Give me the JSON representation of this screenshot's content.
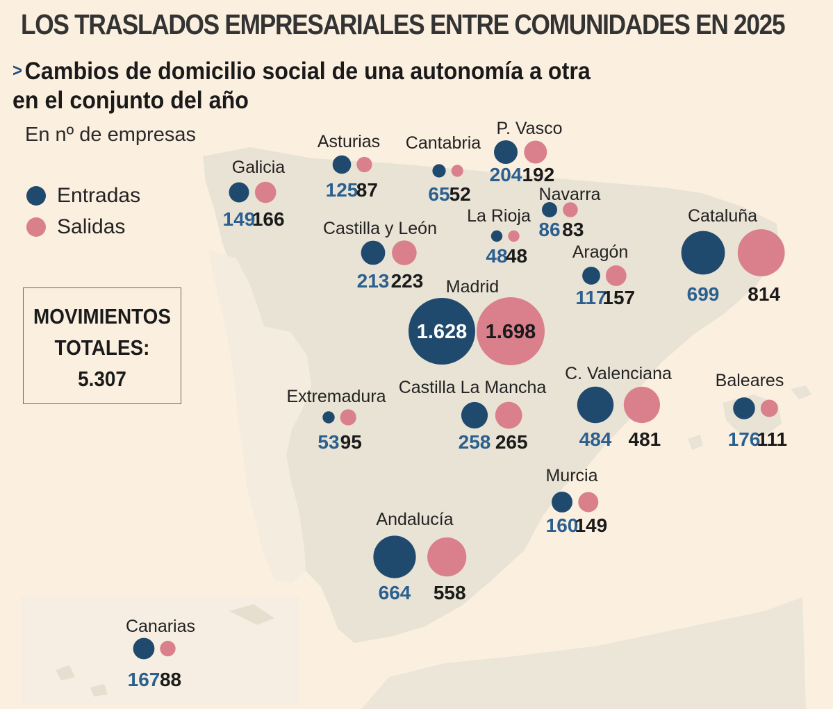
{
  "title": "LOS TRASLADOS EMPRESARIALES ENTRE COMUNIDADES EN 2025",
  "subtitle_line1": "Cambios de domicilio social de una autonomía a otra",
  "subtitle_line2": "en el conjunto del año",
  "subtitle_marker": ">",
  "unit": "En nº de empresas",
  "legend": {
    "entradas": "Entradas",
    "salidas": "Salidas"
  },
  "colors": {
    "entradas": "#1f4a6e",
    "salidas": "#d9808c",
    "land": "#e9e3d5",
    "background": "#fbefe0",
    "entradas_text": "#2a5f8f"
  },
  "totals": {
    "line1": "MOVIMIENTOS",
    "line2": "TOTALES:",
    "value": "5.307"
  },
  "chart_data": {
    "type": "proportional-symbol-map",
    "unit": "En nº de empresas",
    "series": [
      {
        "name": "Entradas",
        "color": "#1f4a6e"
      },
      {
        "name": "Salidas",
        "color": "#d9808c"
      }
    ],
    "regions": [
      {
        "name": "Galicia",
        "entradas": 149,
        "salidas": 166,
        "entradas_label": "149",
        "salidas_label": "166"
      },
      {
        "name": "Asturias",
        "entradas": 125,
        "salidas": 87,
        "entradas_label": "125",
        "salidas_label": "87"
      },
      {
        "name": "Cantabria",
        "entradas": 65,
        "salidas": 52,
        "entradas_label": "65",
        "salidas_label": "52"
      },
      {
        "name": "P. Vasco",
        "entradas": 204,
        "salidas": 192,
        "entradas_label": "204",
        "salidas_label": "192"
      },
      {
        "name": "Navarra",
        "entradas": 86,
        "salidas": 83,
        "entradas_label": "86",
        "salidas_label": "83"
      },
      {
        "name": "La Rioja",
        "entradas": 48,
        "salidas": 48,
        "entradas_label": "48",
        "salidas_label": "48"
      },
      {
        "name": "Castilla y León",
        "entradas": 213,
        "salidas": 223,
        "entradas_label": "213",
        "salidas_label": "223"
      },
      {
        "name": "Cataluña",
        "entradas": 699,
        "salidas": 814,
        "entradas_label": "699",
        "salidas_label": "814"
      },
      {
        "name": "Aragón",
        "entradas": 117,
        "salidas": 157,
        "entradas_label": "117",
        "salidas_label": "157"
      },
      {
        "name": "Madrid",
        "entradas": 1628,
        "salidas": 1698,
        "entradas_label": "1.628",
        "salidas_label": "1.698"
      },
      {
        "name": "Extremadura",
        "entradas": 53,
        "salidas": 95,
        "entradas_label": "53",
        "salidas_label": "95"
      },
      {
        "name": "Castilla La Mancha",
        "entradas": 258,
        "salidas": 265,
        "entradas_label": "258",
        "salidas_label": "265"
      },
      {
        "name": "C. Valenciana",
        "entradas": 484,
        "salidas": 481,
        "entradas_label": "484",
        "salidas_label": "481"
      },
      {
        "name": "Baleares",
        "entradas": 176,
        "salidas": 111,
        "entradas_label": "176",
        "salidas_label": "111"
      },
      {
        "name": "Murcia",
        "entradas": 160,
        "salidas": 149,
        "entradas_label": "160",
        "salidas_label": "149"
      },
      {
        "name": "Andalucía",
        "entradas": 664,
        "salidas": 558,
        "entradas_label": "664",
        "salidas_label": "558"
      },
      {
        "name": "Canarias",
        "entradas": 167,
        "salidas": 88,
        "entradas_label": "167",
        "salidas_label": "88"
      }
    ]
  }
}
